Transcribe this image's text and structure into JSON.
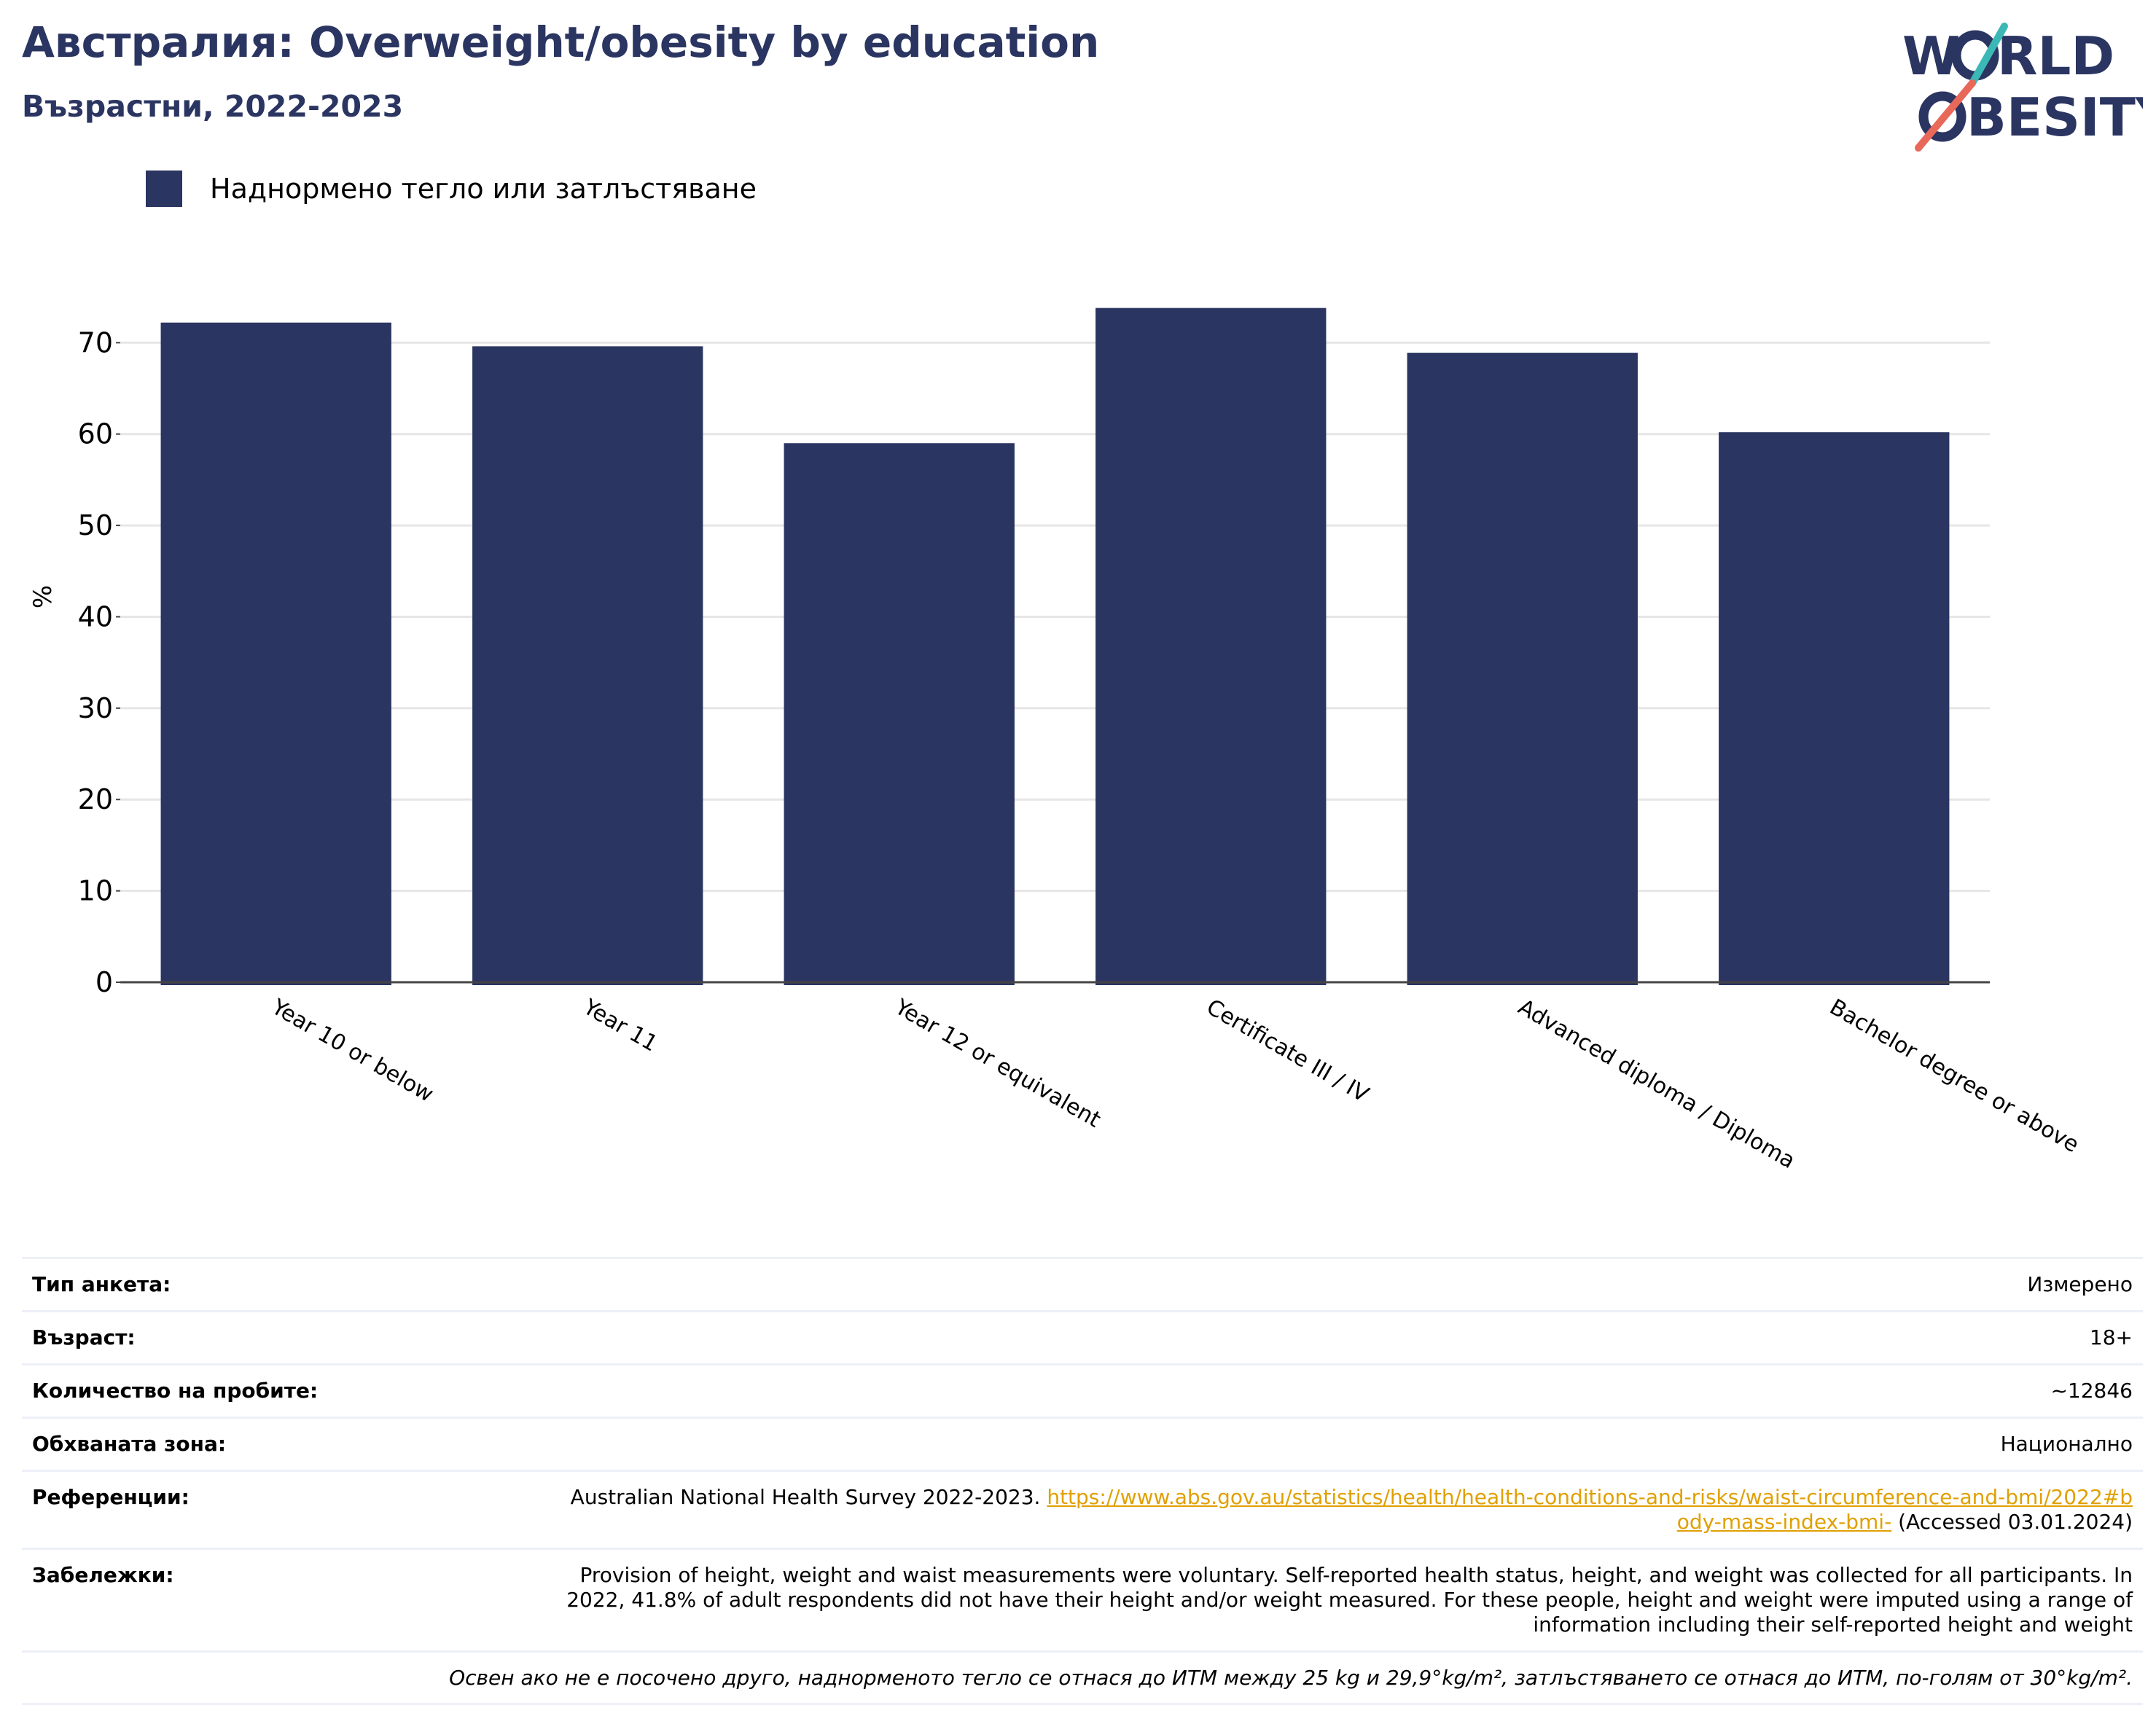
{
  "header": {
    "title": "Австралия: Overweight/obesity by education",
    "subtitle": "Възрастни, 2022-2023"
  },
  "logo": {
    "line1_text": "W",
    "line1_rest": "RLD",
    "line2_text": "BESITY",
    "brand": "WORLD OBESITY",
    "colors": {
      "navy": "#2b3561",
      "teal": "#3bb8b5",
      "coral": "#e8685a"
    }
  },
  "legend": {
    "label": "Наднормено тегло или затлъстяване",
    "color": "#2b3561"
  },
  "chart_data": {
    "type": "bar",
    "categories": [
      "Year 10 or below",
      "Year 11",
      "Year 12 or equivalent",
      "Certificate III / IV",
      "Advanced diploma / Diploma",
      "Bachelor degree or above"
    ],
    "series": [
      {
        "name": "Наднормено тегло или затлъстяване",
        "values": [
          72.2,
          69.6,
          59.0,
          73.8,
          68.9,
          60.2
        ],
        "color": "#2b3561"
      }
    ],
    "ylabel": "%",
    "xlabel": "",
    "ylim": [
      0,
      78
    ],
    "yticks": [
      0,
      10,
      20,
      30,
      40,
      50,
      60,
      70
    ],
    "grid": true,
    "x_tick_rotation": "30deg"
  },
  "meta": {
    "survey_type": {
      "label": "Тип анкета:",
      "value": "Измерено"
    },
    "age": {
      "label": "Възраст:",
      "value": "18+"
    },
    "sample_size": {
      "label": "Количество на пробите:",
      "value": "~12846"
    },
    "coverage": {
      "label": "Обхваната зона:",
      "value": "Национално"
    },
    "references": {
      "label": "Референции:",
      "prefix": "Australian National Health Survey 2022-2023.",
      "link": "https://www.abs.gov.au/statistics/health/health-conditions-and-risks/waist-circumference-and-bmi/2022#body-mass-index-bmi-",
      "suffix": "(Accessed 03.01.2024)"
    },
    "notes": {
      "label": "Забележки:",
      "value": "Provision of height, weight and waist measurements were voluntary. Self-reported health status, height, and weight was collected for all participants. In 2022, 41.8% of adult respondents did not have their height and/or weight measured. For these people, height and weight were imputed using a range of information including their self-reported height and weight"
    },
    "footnote": "Освен ако не е посочено друго, наднорменото тегло се отнася до ИТМ между 25 kg и 29,9°kg/m², затлъстяването се отнася до ИТМ, по-голям от 30°kg/m²."
  }
}
